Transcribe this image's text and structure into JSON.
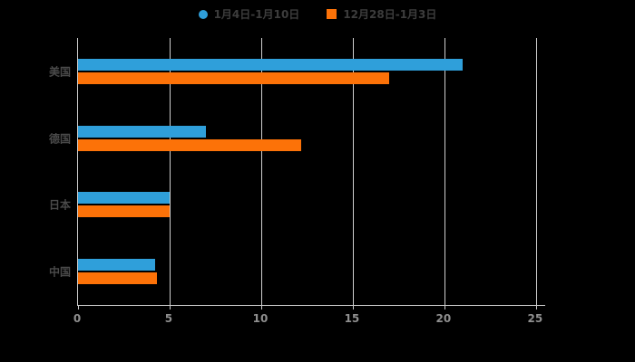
{
  "page": {
    "background": "#000000"
  },
  "legend": {
    "items": [
      {
        "label": "1月4日-1月10日",
        "color": "#2f9fda",
        "shape": "circle"
      },
      {
        "label": "12月28日-1月3日",
        "color": "#fc7208",
        "shape": "square"
      }
    ]
  },
  "chart_data": {
    "type": "bar",
    "orientation": "horizontal",
    "title": "",
    "xlabel": "",
    "ylabel": "",
    "categories": [
      "美国",
      "德国",
      "日本",
      "中国"
    ],
    "series": [
      {
        "name": "1月4日-1月10日",
        "color": "#2f9fda",
        "values": [
          21,
          7,
          5,
          4.2
        ]
      },
      {
        "name": "12月28日-1月3日",
        "color": "#fc7208",
        "values": [
          17,
          12.2,
          5,
          4.3
        ]
      }
    ],
    "xlim": [
      0,
      25.5
    ],
    "xticks": [
      0,
      5,
      10,
      15,
      20,
      25
    ],
    "xtick_labels": [
      "0",
      "5",
      "10",
      "15",
      "20",
      "25"
    ],
    "grid": true,
    "legend_position": "top",
    "axis_color": "#cccccc",
    "grid_color": "#cfcfcf"
  }
}
